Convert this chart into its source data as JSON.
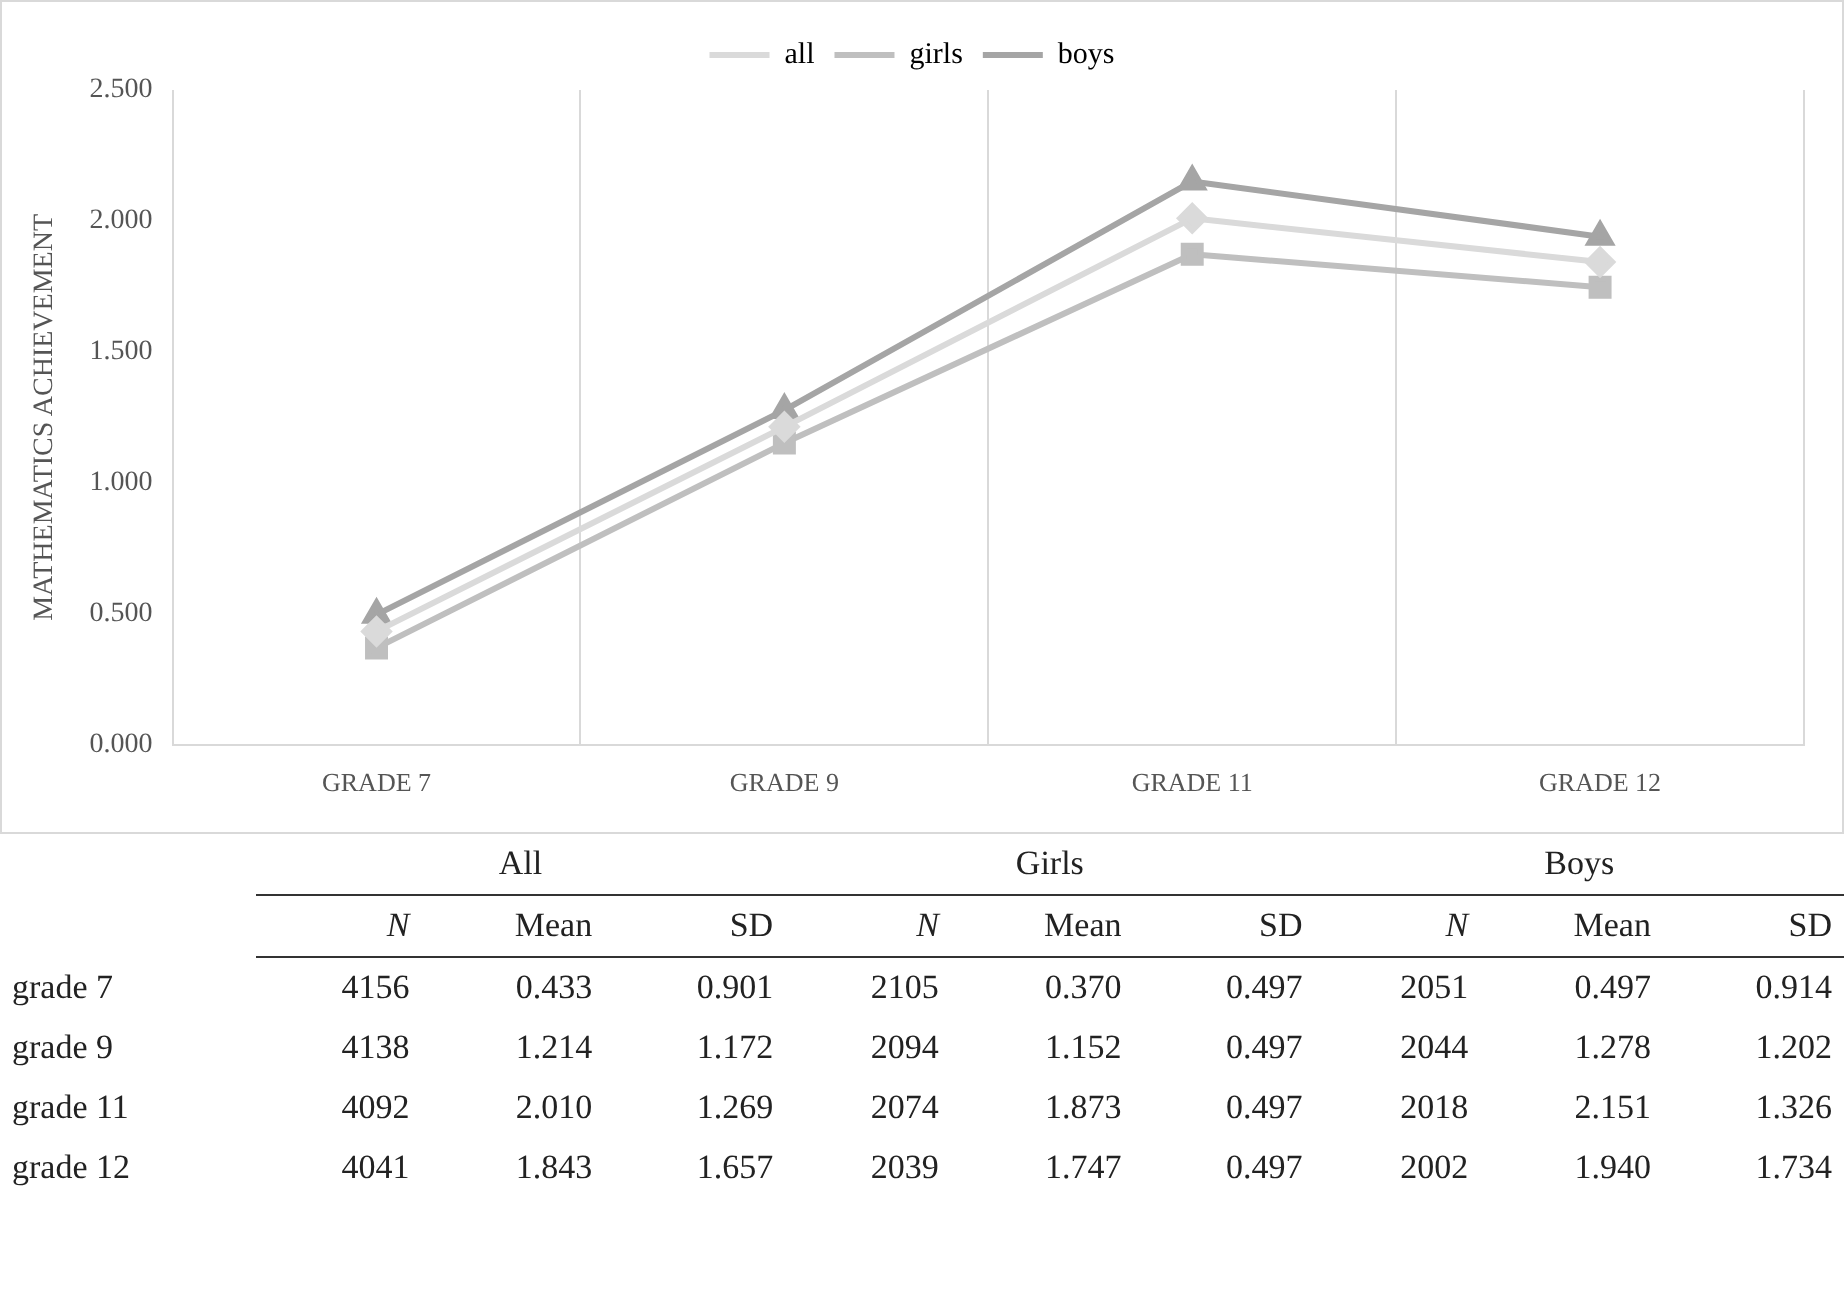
{
  "chart_data": {
    "type": "line",
    "ylabel": "MATHEMATICS ACHIEVEMENT",
    "categories": [
      "GRADE 7",
      "GRADE 9",
      "GRADE 11",
      "GRADE 12"
    ],
    "ylim": [
      0,
      2.5
    ],
    "yticks": [
      {
        "value": 0,
        "label": "0.000"
      },
      {
        "value": 0.5,
        "label": "0.500"
      },
      {
        "value": 1,
        "label": "1.000"
      },
      {
        "value": 1.5,
        "label": "1.500"
      },
      {
        "value": 2,
        "label": "2.000"
      },
      {
        "value": 2.5,
        "label": "2.500"
      }
    ],
    "grid": "x",
    "legend": "top",
    "line_style": "solid",
    "series": [
      {
        "name": "all",
        "color": "#dadada",
        "marker": "diamond",
        "values": [
          0.433,
          1.214,
          2.01,
          1.843
        ]
      },
      {
        "name": "girls",
        "color": "#bfbfbf",
        "marker": "square",
        "values": [
          0.37,
          1.152,
          1.873,
          1.747
        ]
      },
      {
        "name": "boys",
        "color": "#a5a5a5",
        "marker": "triangle",
        "values": [
          0.497,
          1.278,
          2.151,
          1.94
        ]
      }
    ],
    "annotations": [
      "All",
      "Girls",
      "Boys",
      "N",
      "Mean",
      "SD",
      "grade 7",
      "4156",
      "0.433",
      "0.901",
      "2105",
      "0.370",
      "0.497",
      "2051",
      "0.497",
      "0.914",
      "grade 9",
      "4138",
      "1.214",
      "1.172",
      "2094",
      "1.152",
      "0.497",
      "2044",
      "1.278",
      "1.202",
      "grade 11",
      "4092",
      "2.010",
      "1.269",
      "2074",
      "1.873",
      "0.497",
      "2018",
      "2.151",
      "1.326",
      "grade 12",
      "4041",
      "1.843",
      "1.657",
      "2039",
      "1.747",
      "0.497",
      "2002",
      "1.940",
      "1.734"
    ]
  }
}
